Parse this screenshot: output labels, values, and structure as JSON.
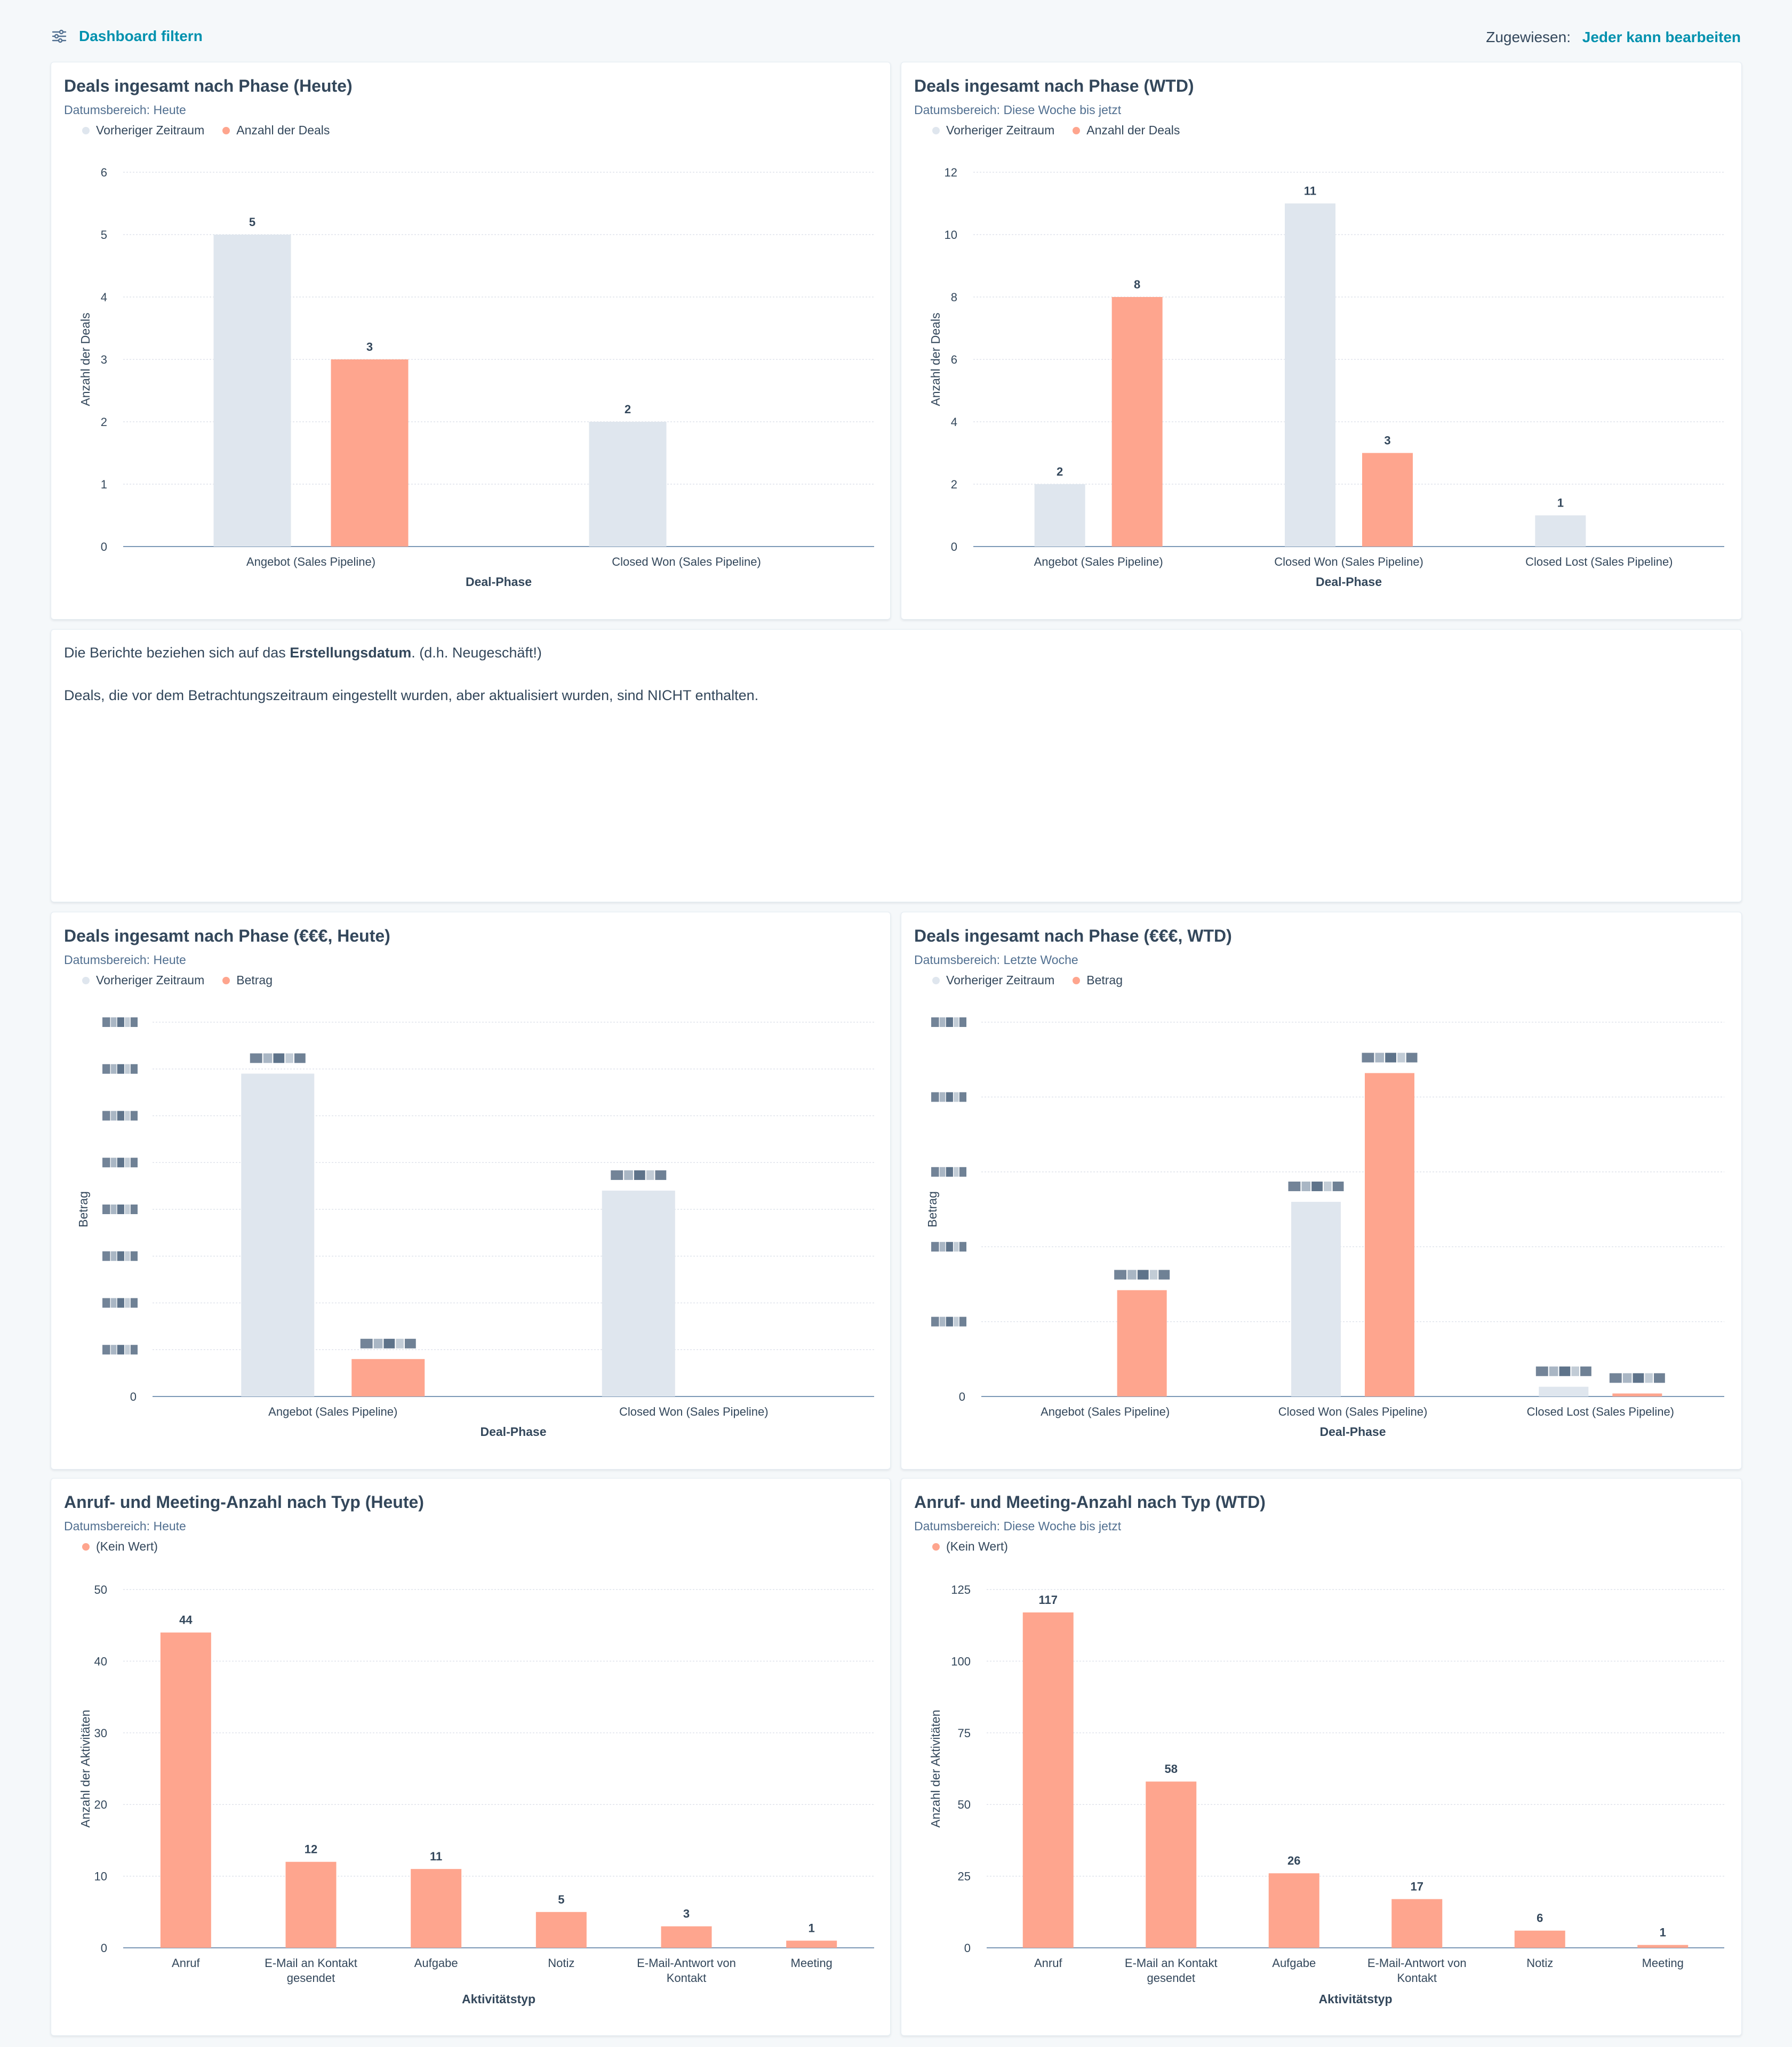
{
  "toolbar": {
    "filter_label": "Dashboard filtern",
    "assigned_label": "Zugewiesen:",
    "assigned_value": "Jeder kann bearbeiten"
  },
  "colors": {
    "previous": "#dfe6ee",
    "current": "#fea58e",
    "axis": "#7c98b6",
    "grid": "#dfe3eb",
    "link": "#0091ae"
  },
  "note": {
    "line1_prefix": "Die Berichte beziehen sich auf das ",
    "line1_bold": "Erstellungsdatum",
    "line1_suffix": ". (d.h. Neugeschäft!)",
    "line2": "Deals, die vor dem Betrachtungszeitraum eingestellt wurden, aber aktualisiert wurden, sind NICHT enthalten."
  },
  "chart_data": [
    {
      "type": "bar",
      "title": "Deals ingesamt nach Phase (Heute)",
      "range_label": "Datumsbereich:",
      "range_value": "Heute",
      "legend": [
        "Vorheriger Zeitraum",
        "Anzahl der Deals"
      ],
      "xlabel": "Deal-Phase",
      "ylabel": "Anzahl der Deals",
      "ylim": [
        0,
        6
      ],
      "yticks": [
        "0",
        "1",
        "2",
        "3",
        "4",
        "5",
        "6"
      ],
      "categories": [
        "Angebot (Sales Pipeline)",
        "Closed Won (Sales Pipeline)"
      ],
      "series": [
        {
          "name": "Vorheriger Zeitraum",
          "values": [
            5,
            2
          ]
        },
        {
          "name": "Anzahl der Deals",
          "values": [
            3,
            null
          ]
        }
      ],
      "value_labels": [
        [
          "5",
          "2"
        ],
        [
          "3",
          ""
        ]
      ]
    },
    {
      "type": "bar",
      "title": "Deals ingesamt nach Phase (WTD)",
      "range_label": "Datumsbereich:",
      "range_value": "Diese Woche bis jetzt",
      "legend": [
        "Vorheriger Zeitraum",
        "Anzahl der Deals"
      ],
      "xlabel": "Deal-Phase",
      "ylabel": "Anzahl der Deals",
      "ylim": [
        0,
        12
      ],
      "yticks": [
        "0",
        "2",
        "4",
        "6",
        "8",
        "10",
        "12"
      ],
      "categories": [
        "Angebot (Sales Pipeline)",
        "Closed Won (Sales Pipeline)",
        "Closed Lost (Sales Pipeline)"
      ],
      "series": [
        {
          "name": "Vorheriger Zeitraum",
          "values": [
            2,
            11,
            1
          ]
        },
        {
          "name": "Anzahl der Deals",
          "values": [
            8,
            3,
            null
          ]
        }
      ],
      "value_labels": [
        [
          "2",
          "11",
          "1"
        ],
        [
          "8",
          "3",
          ""
        ]
      ]
    },
    {
      "type": "bar",
      "title": "Deals ingesamt nach Phase (€€€, Heute)",
      "range_label": "Datumsbereich:",
      "range_value": "Heute",
      "legend": [
        "Vorheriger Zeitraum",
        "Betrag"
      ],
      "xlabel": "Deal-Phase",
      "ylabel": "Betrag",
      "ylim": [
        0,
        8
      ],
      "yticks": [
        "0",
        "",
        "",
        "",
        "",
        "",
        "",
        "",
        ""
      ],
      "blurred_ticks": true,
      "categories": [
        "Angebot (Sales Pipeline)",
        "Closed Won (Sales Pipeline)"
      ],
      "series": [
        {
          "name": "Vorheriger Zeitraum",
          "values": [
            6.9,
            4.4
          ]
        },
        {
          "name": "Betrag",
          "values": [
            0.8,
            null
          ]
        }
      ],
      "value_labels": [
        [
          "",
          ""
        ],
        [
          "",
          ""
        ]
      ],
      "blurred_values": true
    },
    {
      "type": "bar",
      "title": "Deals ingesamt nach Phase (€€€, WTD)",
      "range_label": "Datumsbereich:",
      "range_value": "Letzte Woche",
      "legend": [
        "Vorheriger Zeitraum",
        "Betrag"
      ],
      "xlabel": "Deal-Phase",
      "ylabel": "Betrag",
      "ylim": [
        0,
        5
      ],
      "yticks": [
        "0",
        "",
        "",
        "",
        "",
        ""
      ],
      "blurred_ticks": true,
      "categories": [
        "Angebot (Sales Pipeline)",
        "Closed Won (Sales Pipeline)",
        "Closed Lost (Sales Pipeline)"
      ],
      "series": [
        {
          "name": "Vorheriger Zeitraum",
          "values": [
            null,
            2.6,
            0.13
          ]
        },
        {
          "name": "Betrag",
          "values": [
            1.42,
            4.32,
            0.04
          ]
        }
      ],
      "value_labels": [
        [
          "",
          "",
          ""
        ],
        [
          "",
          "",
          ""
        ]
      ],
      "blurred_values": true
    },
    {
      "type": "bar",
      "title": "Anruf- und Meeting-Anzahl nach Typ (Heute)",
      "range_label": "Datumsbereich:",
      "range_value": "Heute",
      "legend": [
        "(Kein Wert)"
      ],
      "xlabel": "Aktivitätstyp",
      "ylabel": "Anzahl der Aktivitäten",
      "ylim": [
        0,
        50
      ],
      "yticks": [
        "0",
        "10",
        "20",
        "30",
        "40",
        "50"
      ],
      "categories": [
        "Anruf",
        "E-Mail an Kontakt gesendet",
        "Aufgabe",
        "Notiz",
        "E-Mail-Antwort von Kontakt",
        "Meeting"
      ],
      "series": [
        {
          "name": "(Kein Wert)",
          "values": [
            44,
            12,
            11,
            5,
            3,
            1
          ]
        }
      ],
      "value_labels": [
        [
          "44",
          "12",
          "11",
          "5",
          "3",
          "1"
        ]
      ]
    },
    {
      "type": "bar",
      "title": "Anruf- und Meeting-Anzahl nach Typ (WTD)",
      "range_label": "Datumsbereich:",
      "range_value": "Diese Woche bis jetzt",
      "legend": [
        "(Kein Wert)"
      ],
      "xlabel": "Aktivitätstyp",
      "ylabel": "Anzahl der Aktivitäten",
      "ylim": [
        0,
        125
      ],
      "yticks": [
        "0",
        "25",
        "50",
        "75",
        "100",
        "125"
      ],
      "categories": [
        "Anruf",
        "E-Mail an Kontakt gesendet",
        "Aufgabe",
        "E-Mail-Antwort von Kontakt",
        "Notiz",
        "Meeting"
      ],
      "series": [
        {
          "name": "(Kein Wert)",
          "values": [
            117,
            58,
            26,
            17,
            6,
            1
          ]
        }
      ],
      "value_labels": [
        [
          "117",
          "58",
          "26",
          "17",
          "6",
          "1"
        ]
      ]
    }
  ]
}
